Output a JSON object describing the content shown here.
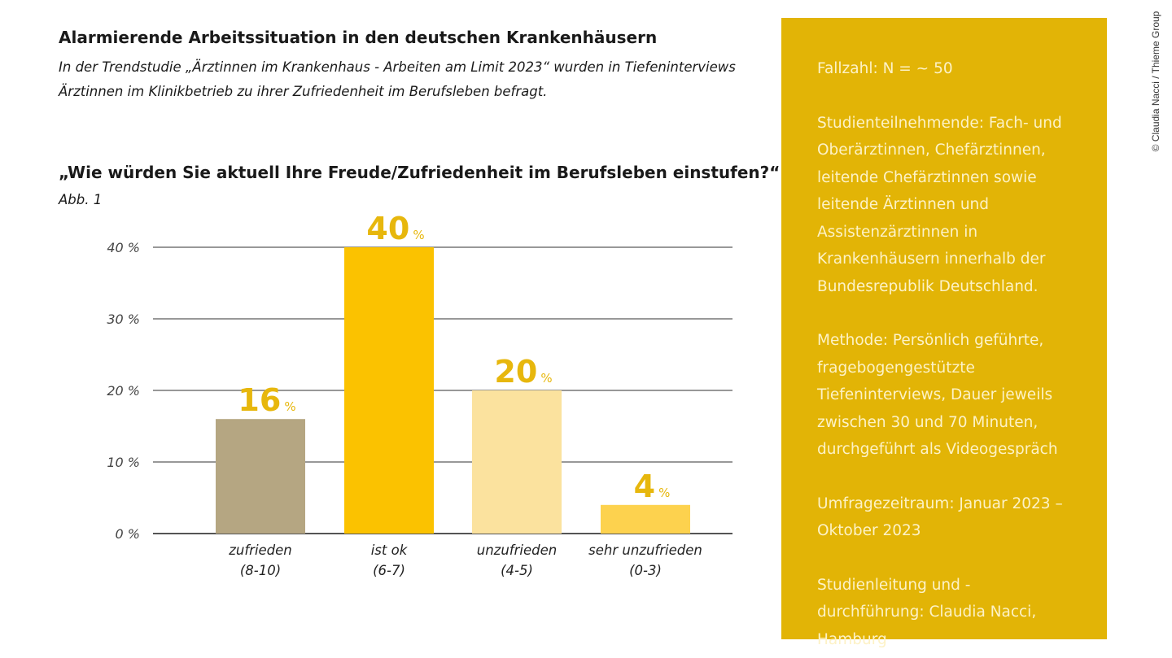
{
  "header": {
    "title": "Alarmierende Arbeitssituation in den deutschen Krankenhäusern",
    "subtitle": "In der Trendstudie „Ärztinnen im Krankenhaus - Arbeiten am Limit 2023“ wurden in Tiefeninterviews Ärztinnen im Klinikbetrieb zu ihrer Zufriedenheit im Berufsleben befragt."
  },
  "chart_data": {
    "type": "bar",
    "title": "„Wie würden Sie aktuell Ihre Freude/Zufriedenheit im Berufsleben einstufen?“",
    "figure_label": "Abb. 1",
    "categories": [
      [
        "zufrieden",
        "(8-10)"
      ],
      [
        "ist ok",
        "(6-7)"
      ],
      [
        "unzufrieden",
        "(4-5)"
      ],
      [
        "sehr unzufrieden",
        "(0-3)"
      ]
    ],
    "values": [
      16,
      40,
      20,
      4
    ],
    "data_labels": [
      "16",
      "40",
      "20",
      "4"
    ],
    "unit": "%",
    "bar_colors": [
      "#b5a682",
      "#fbc200",
      "#fbe29e",
      "#fdd24e"
    ],
    "label_color": "#e7b70d",
    "yticks": [
      "0 %",
      "10 %",
      "20 %",
      "30 %",
      "40 %"
    ],
    "ytick_values": [
      0,
      10,
      20,
      30,
      40
    ],
    "ylim": [
      0,
      40
    ],
    "grid": true
  },
  "panel": {
    "background": "#e2b406",
    "paragraphs": [
      "Fallzahl: N = ~ 50",
      "Studienteilnehmende: Fach- und Oberärztinnen, Chefärztinnen, leitende Chefärztinnen sowie leitende Ärztinnen und Assistenzärztinnen in Krankenhäusern innerhalb der Bundesrepublik Deutschland.",
      "Methode: Persönlich geführte, fragebogengestützte Tiefeninterviews, Dauer jeweils zwischen 30 und 70 Minuten, durchgeführt als Videogespräch",
      "Umfragezeitraum: Januar 2023 – Oktober 2023",
      "Studienleitung und -durchführung: Claudia Nacci, Hamburg"
    ]
  },
  "credit": "© Claudia Nacci / Thieme Group"
}
